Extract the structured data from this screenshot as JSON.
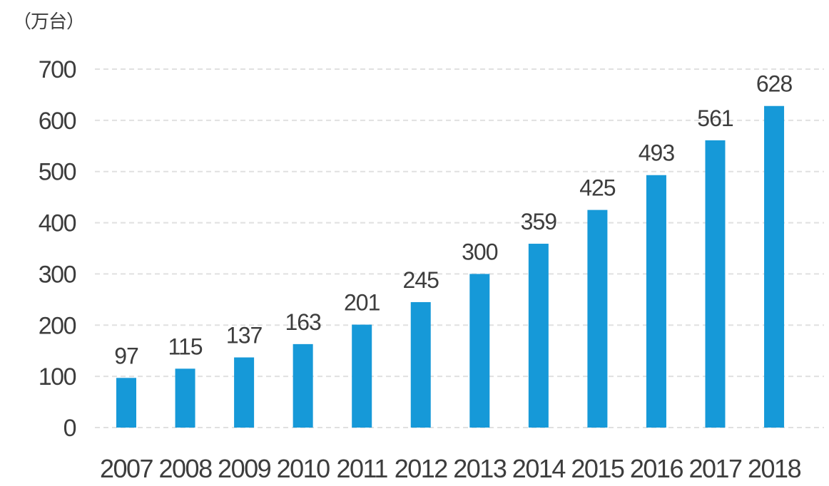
{
  "chart_data": {
    "type": "bar",
    "title": "",
    "unit_label": "（万台）",
    "categories": [
      "2007",
      "2008",
      "2009",
      "2010",
      "2011",
      "2012",
      "2013",
      "2014",
      "2015",
      "2016",
      "2017",
      "2018"
    ],
    "values": [
      97,
      115,
      137,
      163,
      201,
      245,
      300,
      359,
      425,
      493,
      561,
      628
    ],
    "ylim": [
      0,
      700
    ],
    "yticks": [
      0,
      100,
      200,
      300,
      400,
      500,
      600,
      700
    ],
    "grid": "horizontal-dashed",
    "legend_position": "none",
    "colors": {
      "bar": "#1699d8",
      "text": "#3d3d3d",
      "grid": "#e0e0e0",
      "background": "#ffffff"
    }
  }
}
